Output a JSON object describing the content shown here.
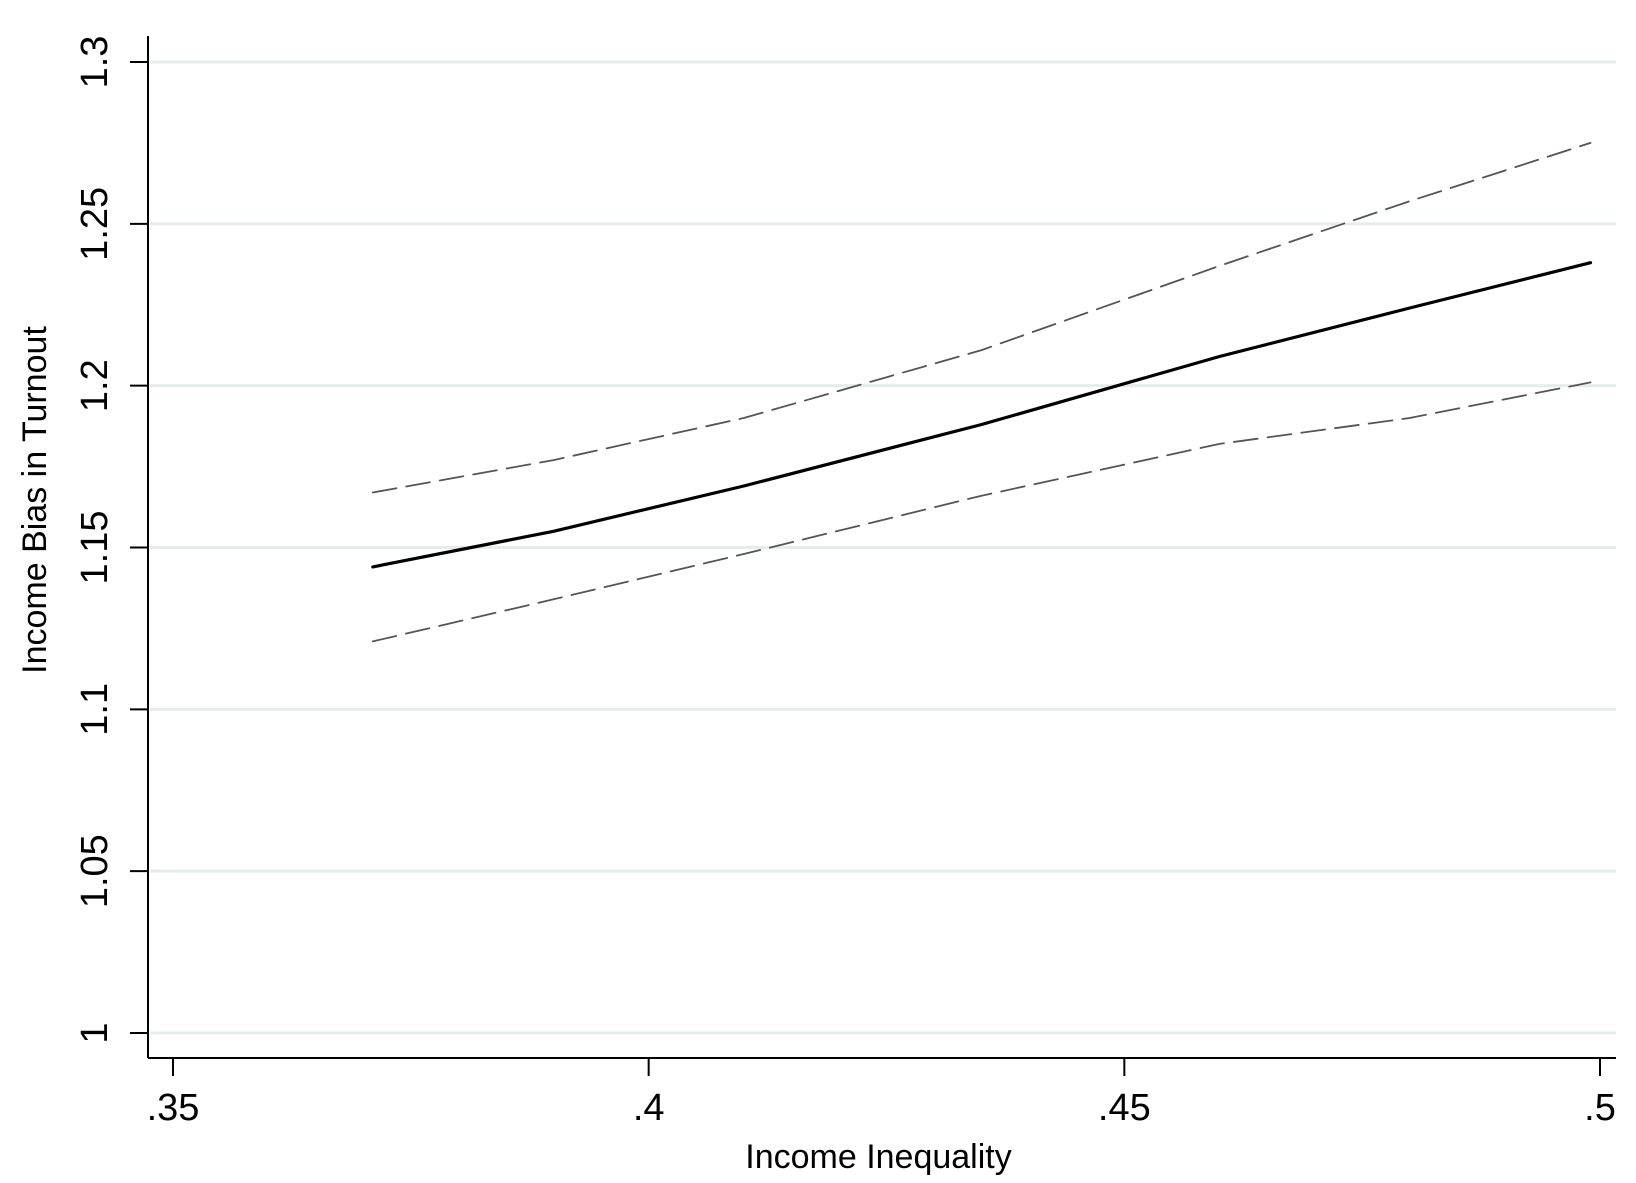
{
  "chart_data": {
    "type": "line",
    "xlabel": "Income Inequality",
    "ylabel": "Income Bias in Turnout",
    "xlim": [
      0.35,
      0.5
    ],
    "ylim": [
      1.0,
      1.3
    ],
    "xticks": [
      {
        "value": 0.35,
        "label": ".35"
      },
      {
        "value": 0.4,
        "label": ".4"
      },
      {
        "value": 0.45,
        "label": ".45"
      },
      {
        "value": 0.5,
        "label": ".5"
      }
    ],
    "yticks": [
      {
        "value": 1.0,
        "label": "1"
      },
      {
        "value": 1.05,
        "label": "1.05"
      },
      {
        "value": 1.1,
        "label": "1.1"
      },
      {
        "value": 1.15,
        "label": "1.15"
      },
      {
        "value": 1.2,
        "label": "1.2"
      },
      {
        "value": 1.25,
        "label": "1.25"
      },
      {
        "value": 1.3,
        "label": "1.3"
      }
    ],
    "grid": true,
    "legend": "none",
    "series": [
      {
        "role": "estimate",
        "style": "solid",
        "color": "#000000",
        "x": [
          0.371,
          0.39,
          0.41,
          0.435,
          0.46,
          0.48,
          0.499
        ],
        "y": [
          1.144,
          1.155,
          1.169,
          1.188,
          1.209,
          1.224,
          1.238
        ]
      },
      {
        "role": "upper bound",
        "style": "dashed",
        "color": "#555555",
        "x": [
          0.371,
          0.39,
          0.41,
          0.435,
          0.46,
          0.48,
          0.499
        ],
        "y": [
          1.167,
          1.177,
          1.19,
          1.211,
          1.237,
          1.257,
          1.275
        ]
      },
      {
        "role": "lower bound",
        "style": "dashed",
        "color": "#555555",
        "x": [
          0.371,
          0.39,
          0.41,
          0.435,
          0.46,
          0.48,
          0.499
        ],
        "y": [
          1.121,
          1.134,
          1.148,
          1.166,
          1.182,
          1.19,
          1.201
        ]
      }
    ]
  }
}
